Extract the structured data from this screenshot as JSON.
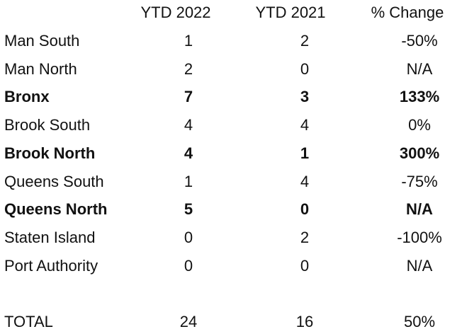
{
  "table": {
    "header": [
      "YTD 2022",
      "YTD 2021",
      "% Change"
    ],
    "rows": [
      {
        "name": "Man South",
        "cells": [
          "1",
          "2",
          "-50%"
        ]
      },
      {
        "name": "Man North",
        "cells": [
          "2",
          "0",
          "N/A"
        ]
      },
      {
        "name": "Bronx",
        "cells": [
          "7",
          "3",
          "133%"
        ],
        "bold": true
      },
      {
        "name": "Brook South",
        "cells": [
          "4",
          "4",
          "0%"
        ]
      },
      {
        "name": "Brook North",
        "cells": [
          "4",
          "1",
          "300%"
        ],
        "bold": true
      },
      {
        "name": "Queens South",
        "cells": [
          "1",
          "4",
          "-75%"
        ]
      },
      {
        "name": "Queens North",
        "cells": [
          "5",
          "0",
          "N/A"
        ],
        "bold": true
      },
      {
        "name": "Staten Island",
        "cells": [
          "0",
          "2",
          "-100%"
        ]
      },
      {
        "name": "Port Authority",
        "cells": [
          "0",
          "0",
          "N/A"
        ]
      }
    ],
    "total": {
      "name": "TOTAL",
      "cells": [
        "24",
        "16",
        "50%"
      ]
    }
  }
}
